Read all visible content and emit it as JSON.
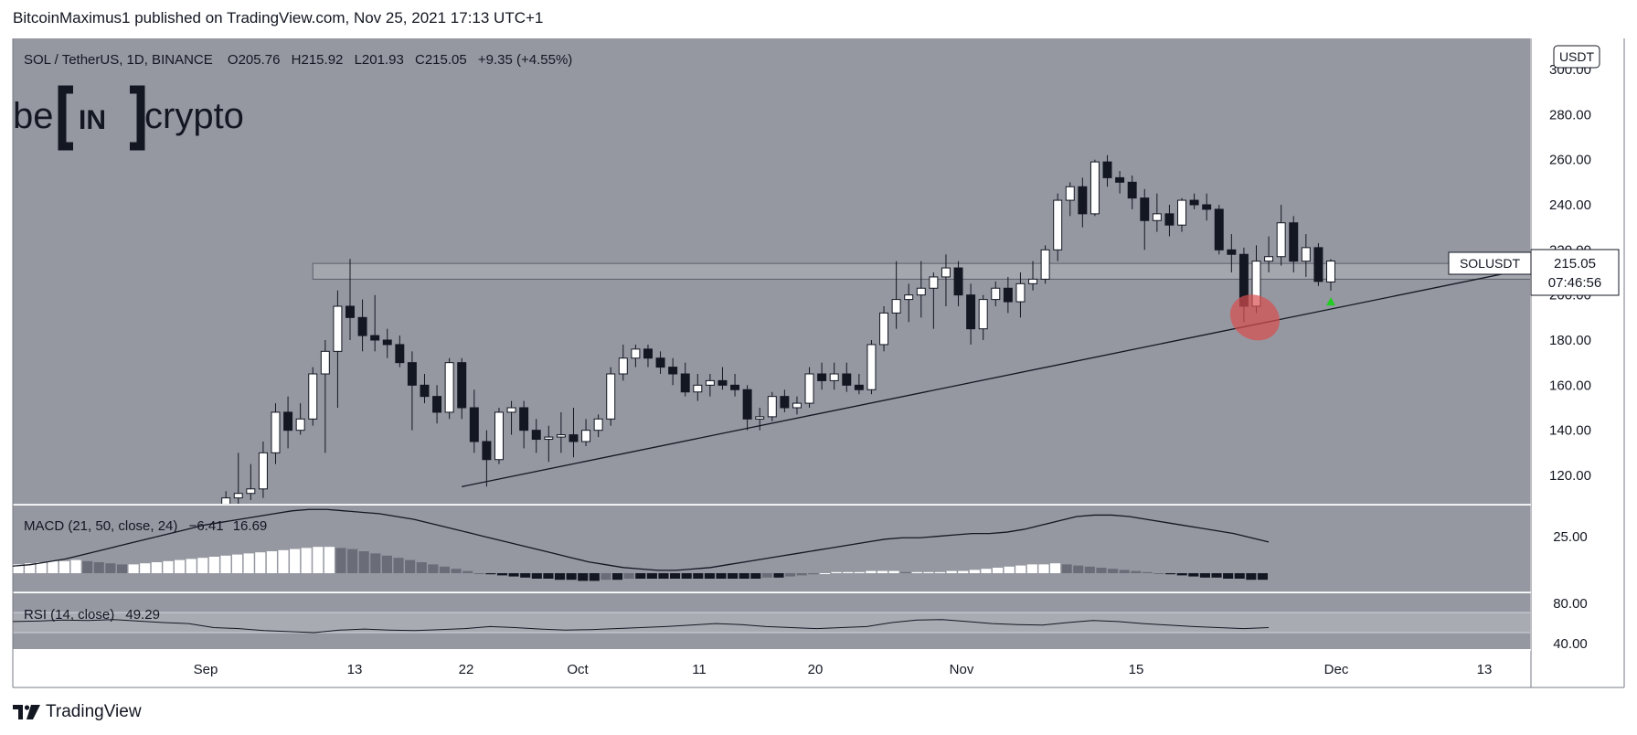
{
  "publisher": "BitcoinMaximus1 published on TradingView.com, Nov 25, 2021 17:13 UTC+1",
  "footer": {
    "brand": "TradingView"
  },
  "logo": {
    "left": "be",
    "middle": "IN",
    "right": "crypto"
  },
  "header": {
    "symbol": "SOL / TetherUS, 1D, BINANCE",
    "o_label": "O",
    "o_value": "205.76",
    "h_label": "H",
    "h_value": "215.92",
    "l_label": "L",
    "l_value": "201.93",
    "c_label": "C",
    "c_value": "215.05",
    "change": "+9.35 (+4.55%)"
  },
  "currency_badge": "USDT",
  "price_tag": {
    "symbol": "SOLUSDT",
    "price": "215.05",
    "countdown": "07:46:56"
  },
  "macd": {
    "label": "MACD (21, 50, close, 24)",
    "value1": "−6.41",
    "value2": "16.69",
    "axis_label": "25.00"
  },
  "rsi": {
    "label": "RSI (14, close)",
    "value": "49.29",
    "axis_labels": [
      "80.00",
      "40.00"
    ]
  },
  "colors": {
    "plot_bg": "#9598a1",
    "up_candle": "#ffffff",
    "down_candle": "#131722",
    "marker": "#22cc22",
    "highlight": "#d94f4f"
  },
  "chart_data": {
    "type": "candlestick",
    "x_ticks": [
      "Sep",
      "13",
      "22",
      "Oct",
      "11",
      "20",
      "Nov",
      "15",
      "Dec",
      "13"
    ],
    "y_ticks": [
      "120.00",
      "140.00",
      "160.00",
      "180.00",
      "200.00",
      "220.00",
      "240.00",
      "260.00",
      "280.00",
      "300.00"
    ],
    "ylim": [
      110,
      305
    ],
    "candles": [
      {
        "date": "2021-09-03",
        "o": 100,
        "h": 113,
        "l": 97,
        "c": 110
      },
      {
        "date": "2021-09-04",
        "o": 110,
        "h": 130,
        "l": 106,
        "c": 112
      },
      {
        "date": "2021-09-05",
        "o": 112,
        "h": 125,
        "l": 109,
        "c": 114
      },
      {
        "date": "2021-09-06",
        "o": 114,
        "h": 135,
        "l": 110,
        "c": 130
      },
      {
        "date": "2021-09-07",
        "o": 130,
        "h": 152,
        "l": 125,
        "c": 148
      },
      {
        "date": "2021-09-08",
        "o": 148,
        "h": 155,
        "l": 132,
        "c": 140
      },
      {
        "date": "2021-09-09",
        "o": 140,
        "h": 152,
        "l": 138,
        "c": 145
      },
      {
        "date": "2021-09-10",
        "o": 145,
        "h": 168,
        "l": 142,
        "c": 165
      },
      {
        "date": "2021-09-11",
        "o": 165,
        "h": 180,
        "l": 130,
        "c": 175
      },
      {
        "date": "2021-09-12",
        "o": 175,
        "h": 202,
        "l": 150,
        "c": 195
      },
      {
        "date": "2021-09-13",
        "o": 195,
        "h": 216,
        "l": 180,
        "c": 190
      },
      {
        "date": "2021-09-14",
        "o": 190,
        "h": 198,
        "l": 175,
        "c": 182
      },
      {
        "date": "2021-09-15",
        "o": 182,
        "h": 200,
        "l": 175,
        "c": 180
      },
      {
        "date": "2021-09-16",
        "o": 180,
        "h": 185,
        "l": 172,
        "c": 178
      },
      {
        "date": "2021-09-17",
        "o": 178,
        "h": 182,
        "l": 168,
        "c": 170
      },
      {
        "date": "2021-09-18",
        "o": 170,
        "h": 175,
        "l": 140,
        "c": 160
      },
      {
        "date": "2021-09-19",
        "o": 160,
        "h": 165,
        "l": 152,
        "c": 155
      },
      {
        "date": "2021-09-20",
        "o": 155,
        "h": 160,
        "l": 143,
        "c": 148
      },
      {
        "date": "2021-09-21",
        "o": 148,
        "h": 172,
        "l": 145,
        "c": 170
      },
      {
        "date": "2021-09-22",
        "o": 170,
        "h": 172,
        "l": 145,
        "c": 150
      },
      {
        "date": "2021-09-23",
        "o": 150,
        "h": 158,
        "l": 130,
        "c": 135
      },
      {
        "date": "2021-09-24",
        "o": 135,
        "h": 140,
        "l": 115,
        "c": 127
      },
      {
        "date": "2021-09-25",
        "o": 127,
        "h": 150,
        "l": 125,
        "c": 148
      },
      {
        "date": "2021-09-26",
        "o": 148,
        "h": 153,
        "l": 138,
        "c": 150
      },
      {
        "date": "2021-09-27",
        "o": 150,
        "h": 153,
        "l": 132,
        "c": 140
      },
      {
        "date": "2021-09-28",
        "o": 140,
        "h": 145,
        "l": 130,
        "c": 136
      },
      {
        "date": "2021-09-29",
        "o": 136,
        "h": 142,
        "l": 126,
        "c": 137
      },
      {
        "date": "2021-09-30",
        "o": 137,
        "h": 148,
        "l": 130,
        "c": 138
      },
      {
        "date": "2021-10-01",
        "o": 138,
        "h": 150,
        "l": 128,
        "c": 135
      },
      {
        "date": "2021-10-02",
        "o": 135,
        "h": 145,
        "l": 133,
        "c": 140
      },
      {
        "date": "2021-10-03",
        "o": 140,
        "h": 147,
        "l": 137,
        "c": 145
      },
      {
        "date": "2021-10-04",
        "o": 145,
        "h": 168,
        "l": 142,
        "c": 165
      },
      {
        "date": "2021-10-05",
        "o": 165,
        "h": 178,
        "l": 162,
        "c": 172
      },
      {
        "date": "2021-10-06",
        "o": 172,
        "h": 178,
        "l": 168,
        "c": 176
      },
      {
        "date": "2021-10-07",
        "o": 176,
        "h": 178,
        "l": 168,
        "c": 172
      },
      {
        "date": "2021-10-08",
        "o": 172,
        "h": 175,
        "l": 165,
        "c": 168
      },
      {
        "date": "2021-10-09",
        "o": 168,
        "h": 172,
        "l": 160,
        "c": 165
      },
      {
        "date": "2021-10-10",
        "o": 165,
        "h": 170,
        "l": 155,
        "c": 157
      },
      {
        "date": "2021-10-11",
        "o": 157,
        "h": 165,
        "l": 153,
        "c": 160
      },
      {
        "date": "2021-10-12",
        "o": 160,
        "h": 165,
        "l": 155,
        "c": 162
      },
      {
        "date": "2021-10-13",
        "o": 162,
        "h": 168,
        "l": 158,
        "c": 160
      },
      {
        "date": "2021-10-14",
        "o": 160,
        "h": 165,
        "l": 155,
        "c": 158
      },
      {
        "date": "2021-10-15",
        "o": 158,
        "h": 160,
        "l": 140,
        "c": 145
      },
      {
        "date": "2021-10-16",
        "o": 145,
        "h": 150,
        "l": 140,
        "c": 146
      },
      {
        "date": "2021-10-17",
        "o": 146,
        "h": 157,
        "l": 144,
        "c": 155
      },
      {
        "date": "2021-10-18",
        "o": 155,
        "h": 158,
        "l": 148,
        "c": 150
      },
      {
        "date": "2021-10-19",
        "o": 150,
        "h": 155,
        "l": 147,
        "c": 152
      },
      {
        "date": "2021-10-20",
        "o": 152,
        "h": 168,
        "l": 150,
        "c": 165
      },
      {
        "date": "2021-10-21",
        "o": 165,
        "h": 170,
        "l": 158,
        "c": 162
      },
      {
        "date": "2021-10-22",
        "o": 162,
        "h": 170,
        "l": 158,
        "c": 165
      },
      {
        "date": "2021-10-23",
        "o": 165,
        "h": 170,
        "l": 157,
        "c": 160
      },
      {
        "date": "2021-10-24",
        "o": 160,
        "h": 165,
        "l": 156,
        "c": 158
      },
      {
        "date": "2021-10-25",
        "o": 158,
        "h": 180,
        "l": 156,
        "c": 178
      },
      {
        "date": "2021-10-26",
        "o": 178,
        "h": 195,
        "l": 175,
        "c": 192
      },
      {
        "date": "2021-10-27",
        "o": 192,
        "h": 215,
        "l": 185,
        "c": 198
      },
      {
        "date": "2021-10-28",
        "o": 198,
        "h": 205,
        "l": 188,
        "c": 200
      },
      {
        "date": "2021-10-29",
        "o": 200,
        "h": 215,
        "l": 190,
        "c": 203
      },
      {
        "date": "2021-10-30",
        "o": 203,
        "h": 210,
        "l": 185,
        "c": 208
      },
      {
        "date": "2021-10-31",
        "o": 208,
        "h": 218,
        "l": 195,
        "c": 212
      },
      {
        "date": "2021-11-01",
        "o": 212,
        "h": 215,
        "l": 195,
        "c": 200
      },
      {
        "date": "2021-11-02",
        "o": 200,
        "h": 205,
        "l": 178,
        "c": 185
      },
      {
        "date": "2021-11-03",
        "o": 185,
        "h": 200,
        "l": 180,
        "c": 198
      },
      {
        "date": "2021-11-04",
        "o": 198,
        "h": 206,
        "l": 195,
        "c": 203
      },
      {
        "date": "2021-11-05",
        "o": 203,
        "h": 208,
        "l": 192,
        "c": 197
      },
      {
        "date": "2021-11-06",
        "o": 197,
        "h": 210,
        "l": 190,
        "c": 205
      },
      {
        "date": "2021-11-07",
        "o": 205,
        "h": 215,
        "l": 202,
        "c": 207
      },
      {
        "date": "2021-11-08",
        "o": 207,
        "h": 222,
        "l": 205,
        "c": 220
      },
      {
        "date": "2021-11-09",
        "o": 220,
        "h": 245,
        "l": 215,
        "c": 242
      },
      {
        "date": "2021-11-10",
        "o": 242,
        "h": 250,
        "l": 235,
        "c": 248
      },
      {
        "date": "2021-11-11",
        "o": 248,
        "h": 252,
        "l": 230,
        "c": 236
      },
      {
        "date": "2021-11-12",
        "o": 236,
        "h": 260,
        "l": 235,
        "c": 259
      },
      {
        "date": "2021-11-13",
        "o": 259,
        "h": 262,
        "l": 248,
        "c": 252
      },
      {
        "date": "2021-11-14",
        "o": 252,
        "h": 255,
        "l": 245,
        "c": 250
      },
      {
        "date": "2021-11-15",
        "o": 250,
        "h": 253,
        "l": 238,
        "c": 243
      },
      {
        "date": "2021-11-16",
        "o": 243,
        "h": 247,
        "l": 220,
        "c": 233
      },
      {
        "date": "2021-11-17",
        "o": 233,
        "h": 245,
        "l": 228,
        "c": 236
      },
      {
        "date": "2021-11-18",
        "o": 236,
        "h": 240,
        "l": 226,
        "c": 231
      },
      {
        "date": "2021-11-19",
        "o": 231,
        "h": 243,
        "l": 228,
        "c": 242
      },
      {
        "date": "2021-11-20",
        "o": 242,
        "h": 245,
        "l": 238,
        "c": 240
      },
      {
        "date": "2021-11-21",
        "o": 240,
        "h": 245,
        "l": 233,
        "c": 238
      },
      {
        "date": "2021-11-22",
        "o": 238,
        "h": 240,
        "l": 218,
        "c": 220
      },
      {
        "date": "2021-11-23",
        "o": 220,
        "h": 227,
        "l": 210,
        "c": 218
      },
      {
        "date": "2021-11-24",
        "o": 218,
        "h": 221,
        "l": 188,
        "c": 195
      },
      {
        "date": "2021-11-25",
        "o": 195,
        "h": 222,
        "l": 192,
        "c": 215
      },
      {
        "date": "2021-11-26",
        "o": 215,
        "h": 226,
        "l": 210,
        "c": 217
      },
      {
        "date": "2021-11-27",
        "o": 217,
        "h": 240,
        "l": 213,
        "c": 232
      },
      {
        "date": "2021-11-28",
        "o": 232,
        "h": 235,
        "l": 210,
        "c": 215
      },
      {
        "date": "2021-11-29",
        "o": 215,
        "h": 227,
        "l": 208,
        "c": 221
      },
      {
        "date": "2021-11-30",
        "o": 221,
        "h": 223,
        "l": 204,
        "c": 206
      },
      {
        "date": "2021-12-01",
        "o": 205.76,
        "h": 215.92,
        "l": 201.93,
        "c": 215.05
      }
    ],
    "resistance_zone": {
      "low": 207,
      "high": 214,
      "from": "2021-09-10",
      "to": "2021-12-20"
    },
    "ascending_support": {
      "from_date": "2021-09-22",
      "from_price": 115,
      "to_date": "2021-12-19",
      "to_price": 214
    },
    "highlight_ellipse": {
      "date": "2021-11-24",
      "price": 190
    },
    "marker": {
      "date": "2021-12-01",
      "price": 197
    },
    "macd_hist": [
      8,
      9,
      10,
      11,
      11,
      12,
      11,
      10,
      9,
      8,
      8,
      9,
      10,
      11,
      12,
      13,
      14,
      15,
      16,
      17,
      18,
      19,
      20,
      21,
      22,
      23,
      24,
      24,
      23,
      22,
      20,
      18,
      16,
      14,
      12,
      10,
      8,
      6,
      4,
      2,
      0,
      -1,
      -2,
      -3,
      -4,
      -5,
      -5,
      -6,
      -6,
      -7,
      -7,
      -6,
      -6,
      -5,
      -5,
      -5,
      -5,
      -5,
      -5,
      -5,
      -5,
      -5,
      -5,
      -5,
      -5,
      -4,
      -4,
      -3,
      -2,
      -1,
      0,
      1,
      1,
      1,
      2,
      2,
      2,
      1,
      1,
      1,
      1,
      2,
      2,
      3,
      4,
      5,
      6,
      7,
      8,
      8,
      9,
      8,
      7,
      6,
      5,
      4,
      3,
      2,
      1,
      0,
      -1,
      -2,
      -3,
      -4,
      -4,
      -5,
      -5,
      -6,
      -6
    ],
    "macd_line": [
      5,
      6,
      8,
      10,
      13,
      16,
      19,
      22,
      25,
      28,
      31,
      34,
      36,
      38,
      40,
      42,
      44,
      45,
      45,
      44,
      43,
      42,
      40,
      38,
      35,
      32,
      29,
      26,
      23,
      20,
      17,
      14,
      11,
      8,
      6,
      4,
      3,
      2,
      2,
      3,
      4,
      6,
      8,
      10,
      12,
      14,
      16,
      18,
      20,
      22,
      24,
      25,
      25,
      26,
      27,
      28,
      28,
      29,
      31,
      34,
      37,
      40,
      41,
      41,
      40,
      38,
      36,
      34,
      32,
      30,
      28,
      25,
      22
    ]
  }
}
